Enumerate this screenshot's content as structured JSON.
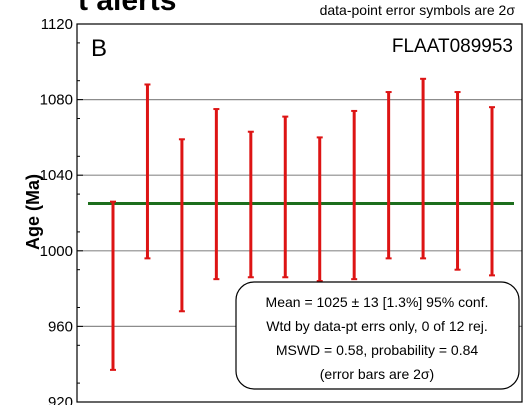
{
  "chart_data": {
    "type": "error_bar",
    "title_fragment": "t alerts",
    "note": "data-point error symbols are 2σ",
    "panel_label": "B",
    "sample_id": "FLAAT089953",
    "ylabel": "Age (Ma)",
    "xlabel": "",
    "ylim": [
      920,
      1120
    ],
    "yticks": [
      920,
      960,
      1000,
      1040,
      1080,
      1120
    ],
    "grid": true,
    "points": [
      {
        "low": 937,
        "high": 1026
      },
      {
        "low": 996,
        "high": 1088
      },
      {
        "low": 968,
        "high": 1059
      },
      {
        "low": 985,
        "high": 1075
      },
      {
        "low": 986,
        "high": 1063
      },
      {
        "low": 986,
        "high": 1071
      },
      {
        "low": 984,
        "high": 1060
      },
      {
        "low": 985,
        "high": 1074
      },
      {
        "low": 996,
        "high": 1084
      },
      {
        "low": 996,
        "high": 1091
      },
      {
        "low": 990,
        "high": 1084
      },
      {
        "low": 987,
        "high": 1076
      }
    ],
    "mean_line": 1025,
    "mean_color": "#1d6e1d",
    "bar_color": "#dd1414",
    "stats": [
      "Mean = 1025 ± 13 [1.3%]  95% conf.",
      "Wtd by data-pt errs only, 0 of 12 rej.",
      "MSWD = 0.58, probability = 0.84",
      "(error bars are 2σ)"
    ]
  }
}
